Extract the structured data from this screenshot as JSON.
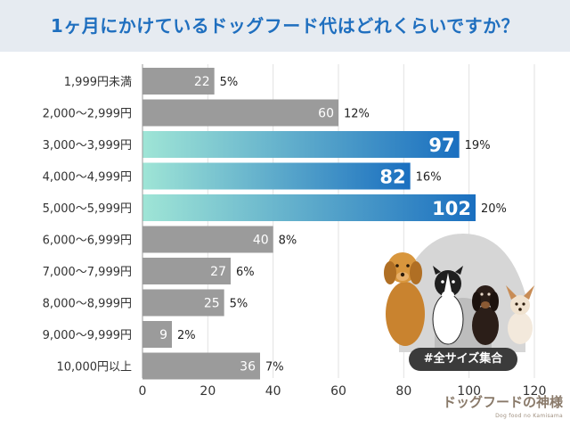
{
  "title": "1ヶ月にかけているドッグフード代はどれくらいですか？",
  "badge": "#全サイズ集合",
  "brand": {
    "name": "ドッグフードの神様",
    "tagline": "Dog food no Kamisama"
  },
  "colors": {
    "title": "#1f6fbf",
    "bar_gray": "#9b9b9b",
    "bar_gradient_start": "#9fe5d6",
    "bar_gradient_end": "#1a6fc0"
  },
  "icons": [
    "dogs-illustration"
  ],
  "chart_data": {
    "type": "bar",
    "orientation": "horizontal",
    "categories": [
      "1,999円未満",
      "2,000〜2,999円",
      "3,000〜3,999円",
      "4,000〜4,999円",
      "5,000〜5,999円",
      "6,000〜6,999円",
      "7,000〜7,999円",
      "8,000〜8,999円",
      "9,000〜9,999円",
      "10,000円以上"
    ],
    "values": [
      22,
      60,
      97,
      82,
      102,
      40,
      27,
      25,
      9,
      36
    ],
    "percentages": [
      "5%",
      "12%",
      "19%",
      "16%",
      "20%",
      "8%",
      "6%",
      "5%",
      "2%",
      "7%"
    ],
    "highlighted": [
      false,
      false,
      true,
      true,
      true,
      false,
      false,
      false,
      false,
      false
    ],
    "xlim": [
      0,
      120
    ],
    "xticks": [
      0,
      20,
      40,
      60,
      80,
      100,
      120
    ],
    "grid": true,
    "xlabel": "",
    "ylabel": ""
  }
}
